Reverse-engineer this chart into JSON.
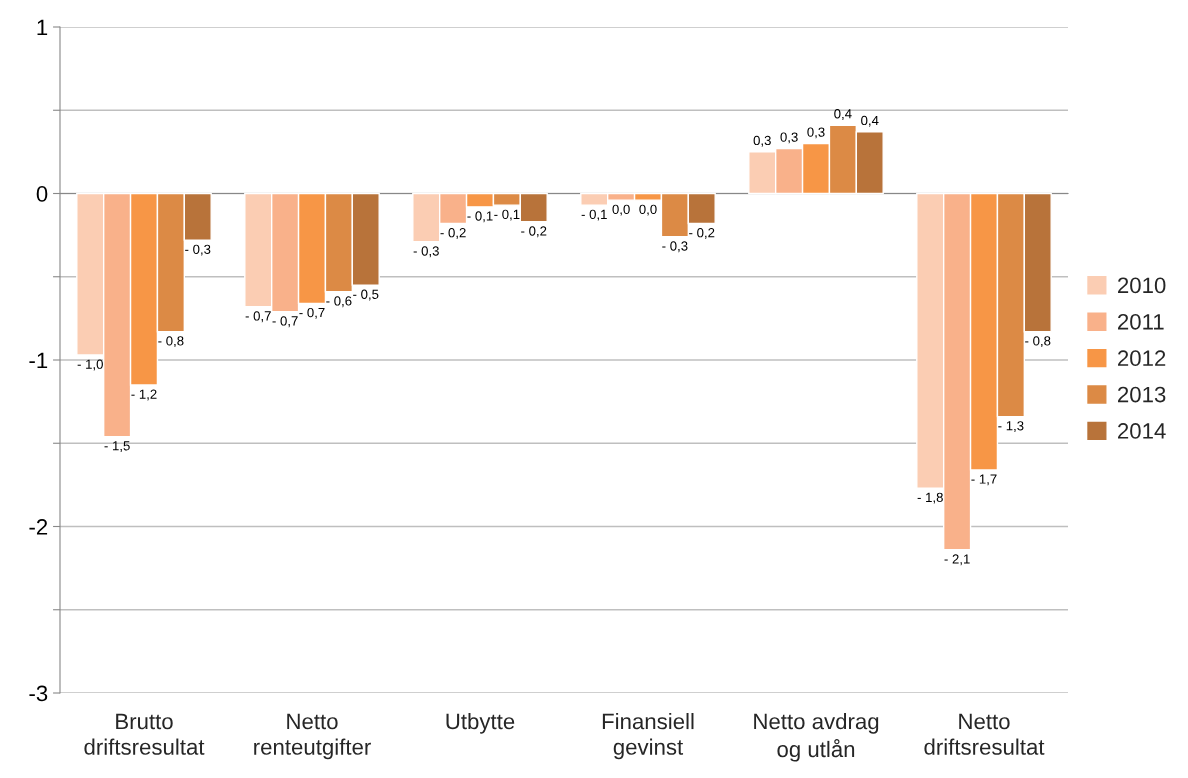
{
  "chart_data": {
    "type": "bar",
    "categories": [
      "Brutto driftsresultat",
      "Netto renteutgifter",
      "Utbytte",
      "Finansiell gevinst",
      "Netto avdrag og utlån",
      "Netto driftsresultat"
    ],
    "series": [
      {
        "name": "2010",
        "color": "#fbcdb3",
        "values": [
          -0.97,
          -0.68,
          -0.29,
          -0.07,
          0.25,
          -1.77
        ],
        "value_labels": [
          "- 1,0",
          "- 0,7",
          "- 0,3",
          "- 0,1",
          "0,3",
          "- 1,8"
        ]
      },
      {
        "name": "2011",
        "color": "#f9b18a",
        "values": [
          -1.46,
          -0.71,
          -0.18,
          -0.04,
          0.27,
          -2.14
        ],
        "value_labels": [
          "- 1,5",
          "- 0,7",
          "- 0,2",
          "0,0",
          "0,3",
          "- 2,1"
        ]
      },
      {
        "name": "2012",
        "color": "#f79646",
        "values": [
          -1.15,
          -0.66,
          -0.08,
          -0.04,
          0.3,
          -1.66
        ],
        "value_labels": [
          "- 1,2",
          "- 0,7",
          "- 0,1",
          "0,0",
          "0,3",
          "- 1,7"
        ]
      },
      {
        "name": "2013",
        "color": "#dc8a45",
        "values": [
          -0.83,
          -0.59,
          -0.07,
          -0.26,
          0.41,
          -1.34
        ],
        "value_labels": [
          "- 0,8",
          "- 0,6",
          "- 0,1",
          "- 0,3",
          "0,4",
          "- 1,3"
        ]
      },
      {
        "name": "2014",
        "color": "#b8733a",
        "values": [
          -0.28,
          -0.55,
          -0.17,
          -0.18,
          0.37,
          -0.83
        ],
        "value_labels": [
          "- 0,3",
          "- 0,5",
          "- 0,2",
          "- 0,2",
          "0,4",
          "- 0,8"
        ]
      }
    ],
    "ylim": [
      -3,
      1
    ],
    "yticks": [
      -3,
      {
        "value": -2.5,
        "label": null
      },
      -2,
      {
        "value": -1.5,
        "label": null
      },
      -1,
      {
        "value": -0.5,
        "label": null
      },
      0,
      {
        "value": 0.5,
        "label": null
      },
      1
    ],
    "grid": "y",
    "legend": "right"
  }
}
